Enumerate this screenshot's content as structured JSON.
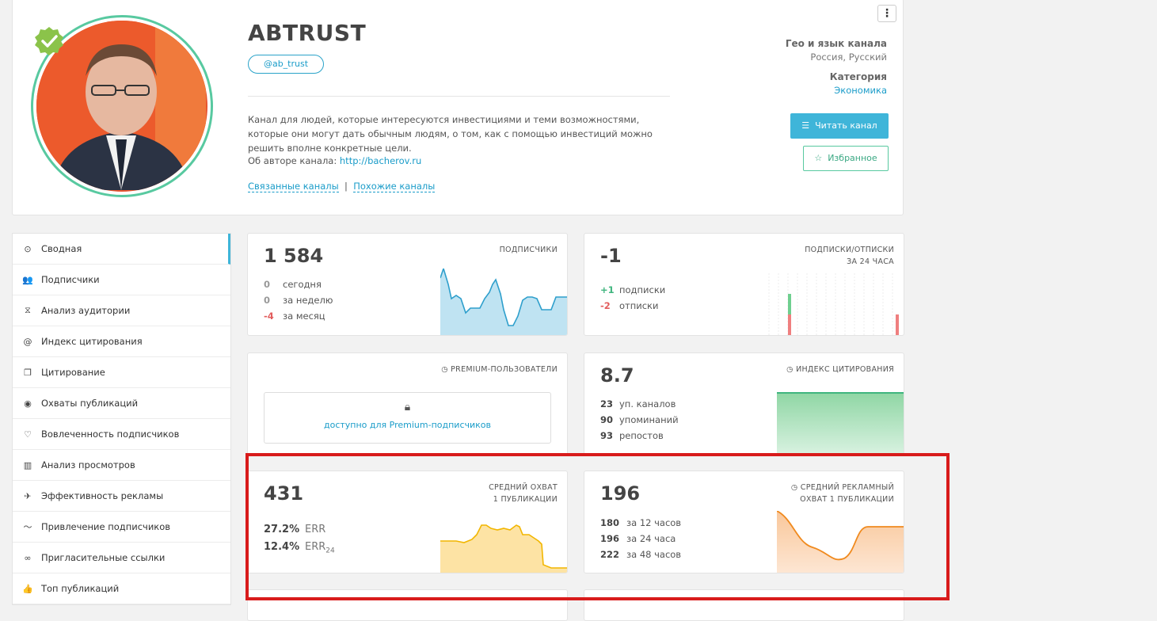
{
  "channel": {
    "title": "ABTRUST",
    "handle": "@ab_trust",
    "description": "Канал для людей, которые интересуются инвестициями и теми возможностями, которые они могут дать обычным людям, о том, как с помощью инвестиций можно решить вполне конкретные цели.",
    "author_label": "Об авторе канала:",
    "author_link": "http://bacherov.ru",
    "related_link": "Связанные каналы",
    "similar_link": "Похожие каналы",
    "geo_label": "Гео и язык канала",
    "geo_value": "Россия, Русский",
    "category_label": "Категория",
    "category_value": "Экономика",
    "read_button": "Читать канал",
    "favorite_button": "Избранное",
    "menu_icon": "kebab-menu-icon"
  },
  "sidebar": {
    "items": [
      {
        "label": "Сводная",
        "icon": "⊙"
      },
      {
        "label": "Подписчики",
        "icon": "👥"
      },
      {
        "label": "Анализ аудитории",
        "icon": "⧖"
      },
      {
        "label": "Индекс цитирования",
        "icon": "@"
      },
      {
        "label": "Цитирование",
        "icon": "❐"
      },
      {
        "label": "Охваты публикаций",
        "icon": "◉"
      },
      {
        "label": "Вовлеченность подписчиков",
        "icon": "♡"
      },
      {
        "label": "Анализ просмотров",
        "icon": "▥"
      },
      {
        "label": "Эффективность рекламы",
        "icon": "✈"
      },
      {
        "label": "Привлечение подписчиков",
        "icon": "〜"
      },
      {
        "label": "Пригласительные ссылки",
        "icon": "∞"
      },
      {
        "label": "Топ публикаций",
        "icon": "👍"
      }
    ]
  },
  "subscribers": {
    "value": "1 584",
    "label": "ПОДПИСЧИКИ",
    "rows": [
      {
        "n": "0",
        "label": "сегодня"
      },
      {
        "n": "0",
        "label": "за неделю"
      },
      {
        "n": "-4",
        "label": "за месяц"
      }
    ]
  },
  "subs_unsubs": {
    "value": "-1",
    "label1": "ПОДПИСКИ/ОТПИСКИ",
    "label2": "ЗА 24 ЧАСА",
    "rows": [
      {
        "n": "+1",
        "label": "подписки"
      },
      {
        "n": "-2",
        "label": "отписки"
      }
    ]
  },
  "premium": {
    "label": "PREMIUM-ПОЛЬЗОВАТЕЛИ",
    "locked_text": "доступно для Premium-подписчиков"
  },
  "citation": {
    "value": "8.7",
    "label": "ИНДЕКС ЦИТИРОВАНИЯ",
    "rows": [
      {
        "n": "23",
        "label": "уп. каналов"
      },
      {
        "n": "90",
        "label": "упоминаний"
      },
      {
        "n": "93",
        "label": "репостов"
      }
    ]
  },
  "avg_reach": {
    "value": "431",
    "label1": "СРЕДНИЙ ОХВАТ",
    "label2": "1 ПУБЛИКАЦИИ",
    "rows": [
      {
        "n": "27.2%",
        "label": "ERR"
      },
      {
        "n": "12.4%",
        "label": "ERR",
        "sub": "24"
      }
    ]
  },
  "avg_ad_reach": {
    "value": "196",
    "label1": "СРЕДНИЙ РЕКЛАМНЫЙ",
    "label2": "ОХВАТ 1 ПУБЛИКАЦИИ",
    "rows": [
      {
        "n": "180",
        "label": "за 12 часов"
      },
      {
        "n": "196",
        "label": "за 24 часа"
      },
      {
        "n": "222",
        "label": "за 48 часов"
      }
    ]
  },
  "colors": {
    "accent": "#3fb5d9",
    "green": "#58c9a0",
    "highlight": "#d81b1b"
  }
}
